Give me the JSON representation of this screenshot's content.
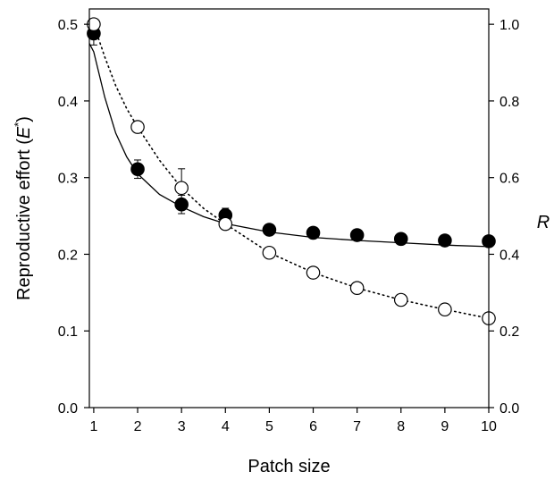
{
  "chart_data": {
    "type": "scatter",
    "title": "",
    "xlabel": "Patch size",
    "ylabel_left_text": "Reproductive effort (",
    "ylabel_left_symbol": "E",
    "ylabel_left_superscript": "*",
    "ylabel_left_close": ")",
    "ylabel_right": "R",
    "xlim": [
      0.9,
      10
    ],
    "ylim_left": [
      0,
      0.52
    ],
    "ylim_right": [
      0,
      1.04
    ],
    "x_ticks": [
      1,
      2,
      3,
      4,
      5,
      6,
      7,
      8,
      9,
      10
    ],
    "x_tick_labels": [
      "1",
      "2",
      "3",
      "4",
      "5",
      "6",
      "7",
      "8",
      "9",
      "10"
    ],
    "y_left_ticks": [
      0.0,
      0.1,
      0.2,
      0.3,
      0.4,
      0.5
    ],
    "y_left_tick_labels": [
      "0.0",
      "0.1",
      "0.2",
      "0.3",
      "0.4",
      "0.5"
    ],
    "y_right_ticks": [
      0.0,
      0.2,
      0.4,
      0.6,
      0.8,
      1.0
    ],
    "y_right_tick_labels": [
      "0.0",
      "0.2",
      "0.4",
      "0.6",
      "0.8",
      "1.0"
    ],
    "grid": false,
    "legend": "none",
    "series": [
      {
        "axis": "left",
        "marker": "filled-circle",
        "color": "#000000",
        "x": [
          1,
          2,
          3,
          4,
          5,
          6,
          7,
          8,
          9,
          10
        ],
        "y": [
          0.488,
          0.311,
          0.265,
          0.251,
          0.232,
          0.228,
          0.225,
          0.22,
          0.218,
          0.217
        ],
        "error": [
          0.015,
          0.012,
          0.012,
          0.009,
          0.006,
          0.006,
          0.005,
          0.005,
          0.005,
          0.005
        ]
      },
      {
        "axis": "right",
        "marker": "open-circle",
        "color": "#000000",
        "x": [
          1,
          2,
          3,
          4,
          5,
          6,
          7,
          8,
          9,
          10
        ],
        "y": [
          1.0,
          0.732,
          0.573,
          0.479,
          0.404,
          0.352,
          0.312,
          0.281,
          0.256,
          0.233
        ],
        "error_upper": [
          0,
          0,
          0.05,
          0,
          0,
          0,
          0,
          0,
          0,
          0
        ]
      }
    ],
    "fit_lines": [
      {
        "axis": "left",
        "style": "solid",
        "x": [
          0.9,
          1,
          1.25,
          1.5,
          1.75,
          2,
          2.5,
          3,
          3.5,
          4,
          5,
          6,
          7,
          8,
          9,
          10
        ],
        "y": [
          0.475,
          0.464,
          0.405,
          0.358,
          0.327,
          0.305,
          0.278,
          0.262,
          0.249,
          0.24,
          0.229,
          0.222,
          0.218,
          0.215,
          0.212,
          0.21
        ]
      },
      {
        "axis": "right",
        "style": "dotted",
        "x": [
          1,
          1.25,
          1.5,
          1.75,
          2,
          2.5,
          3,
          3.5,
          4,
          5,
          6,
          7,
          8,
          9,
          10
        ],
        "y": [
          1.0,
          0.915,
          0.84,
          0.78,
          0.732,
          0.645,
          0.573,
          0.52,
          0.479,
          0.404,
          0.352,
          0.312,
          0.281,
          0.256,
          0.233
        ]
      }
    ]
  }
}
